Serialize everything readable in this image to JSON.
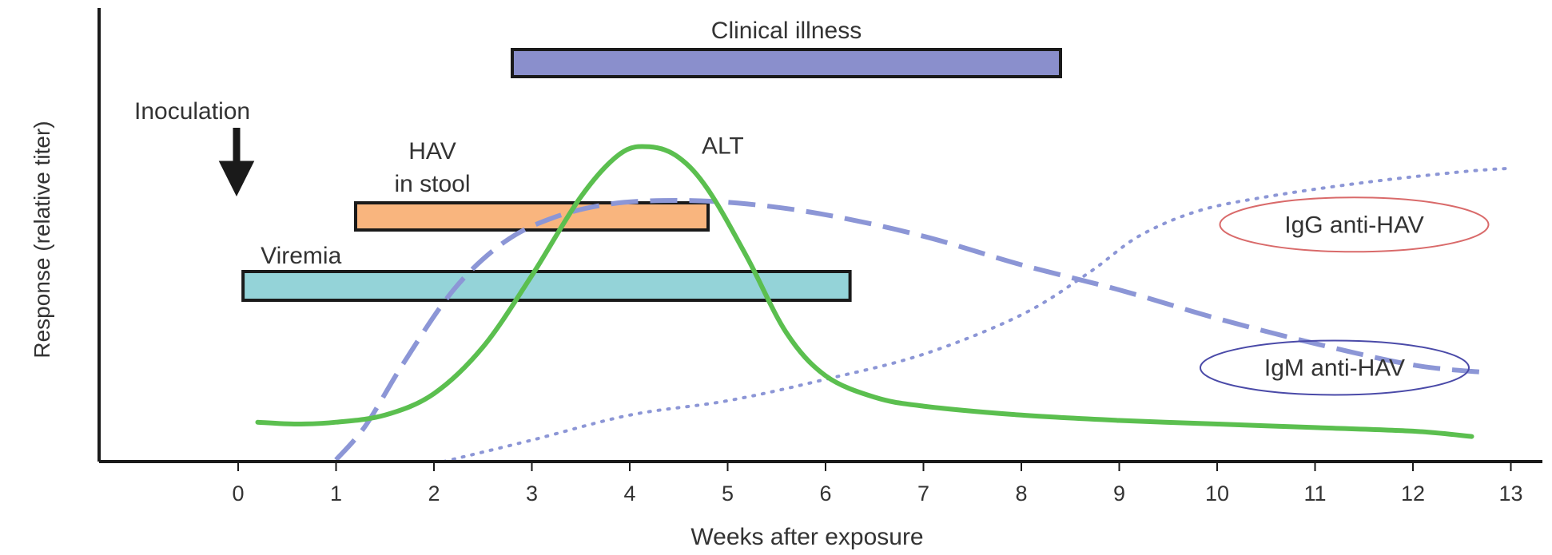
{
  "chart_data": {
    "type": "line",
    "title": "",
    "xlabel": "Weeks after exposure",
    "ylabel": "Response (relative titer)",
    "xlim": [
      -1.45,
      13
    ],
    "ylim": [
      0,
      100
    ],
    "grid": false,
    "x_ticks": [
      "0",
      "1",
      "2",
      "3",
      "4",
      "5",
      "6",
      "7",
      "8",
      "9",
      "10",
      "11",
      "12",
      "13"
    ],
    "event": {
      "label": "Inoculation",
      "x": 0
    },
    "intervals": [
      {
        "name": "Clinical illness",
        "start": 2.8,
        "end": 8.4,
        "color": "#8a8fcc"
      },
      {
        "name": "HAV in stool",
        "label_lines": [
          "HAV",
          "in stool"
        ],
        "start": 1.2,
        "end": 4.8,
        "color": "#f9b57e"
      },
      {
        "name": "Viremia",
        "start": 0.05,
        "end": 6.25,
        "color": "#94d3d8"
      }
    ],
    "series": [
      {
        "name": "ALT",
        "style": "solid",
        "color": "#5bbf4f",
        "points": [
          [
            0.2,
            11
          ],
          [
            0.6,
            10.5
          ],
          [
            1.0,
            11
          ],
          [
            1.5,
            13
          ],
          [
            2.0,
            19
          ],
          [
            2.5,
            32
          ],
          [
            3.0,
            52
          ],
          [
            3.5,
            74
          ],
          [
            3.9,
            86
          ],
          [
            4.2,
            88
          ],
          [
            4.5,
            85
          ],
          [
            4.8,
            76
          ],
          [
            5.2,
            57
          ],
          [
            5.6,
            36
          ],
          [
            6.0,
            24
          ],
          [
            6.5,
            18
          ],
          [
            7.0,
            15.5
          ],
          [
            8.0,
            13
          ],
          [
            9.0,
            11.5
          ],
          [
            10.0,
            10.5
          ],
          [
            11.0,
            9.5
          ],
          [
            12.0,
            8.5
          ],
          [
            12.6,
            7
          ]
        ]
      },
      {
        "name": "IgM anti-HAV",
        "style": "dashed",
        "color": "#8c96d6",
        "points": [
          [
            1.0,
            0.5
          ],
          [
            1.3,
            10
          ],
          [
            1.7,
            28
          ],
          [
            2.2,
            48
          ],
          [
            2.7,
            61
          ],
          [
            3.2,
            68
          ],
          [
            3.8,
            72
          ],
          [
            4.5,
            73
          ],
          [
            5.2,
            72
          ],
          [
            6.0,
            69
          ],
          [
            7.0,
            63
          ],
          [
            8.0,
            55
          ],
          [
            9.0,
            48
          ],
          [
            10.0,
            40
          ],
          [
            11.0,
            33
          ],
          [
            12.0,
            27
          ],
          [
            12.7,
            25
          ]
        ]
      },
      {
        "name": "IgG anti-HAV",
        "style": "dotted",
        "color": "#8c96d6",
        "points": [
          [
            2.1,
            0
          ],
          [
            3.0,
            6
          ],
          [
            4.0,
            13
          ],
          [
            5.0,
            17
          ],
          [
            6.0,
            23
          ],
          [
            7.0,
            30
          ],
          [
            8.0,
            41
          ],
          [
            8.7,
            53
          ],
          [
            9.2,
            63
          ],
          [
            9.8,
            70
          ],
          [
            10.5,
            74
          ],
          [
            11.5,
            78
          ],
          [
            12.5,
            81
          ],
          [
            13.0,
            82
          ]
        ]
      }
    ],
    "annotations": [
      {
        "text": "ALT",
        "series": "ALT",
        "x": 4.95,
        "y": 86
      },
      {
        "text": "IgG anti-HAV",
        "series": "IgG anti-HAV",
        "x": 11.4,
        "y": 64,
        "circled": true,
        "circle_color": "#d96a6a"
      },
      {
        "text": "IgM anti-HAV",
        "series": "IgM anti-HAV",
        "x": 11.2,
        "y": 24,
        "circled": true,
        "circle_color": "#4a4aa8"
      }
    ]
  }
}
